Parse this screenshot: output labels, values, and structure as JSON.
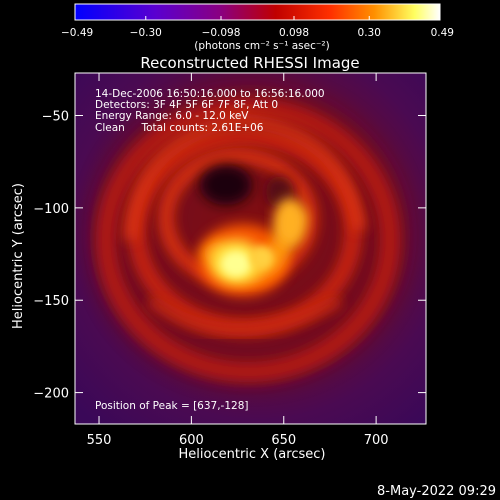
{
  "chart_data": {
    "type": "heatmap",
    "title": "Reconstructed RHESSI Image",
    "xlabel": "Heliocentric X (arcsec)",
    "ylabel": "Heliocentric Y (arcsec)",
    "xlim": [
      537,
      727
    ],
    "ylim": [
      -217,
      -27
    ],
    "xticks": [
      550,
      600,
      650,
      700
    ],
    "yticks": [
      -50,
      -100,
      -150,
      -200
    ],
    "xtick_labels": [
      "550",
      "600",
      "650",
      "700"
    ],
    "ytick_labels": [
      "−50",
      "−100",
      "−150",
      "−200"
    ],
    "colorbar": {
      "min": -0.49,
      "max": 0.49,
      "ticks": [
        -0.49,
        -0.3,
        -0.098,
        0.098,
        0.3,
        0.49
      ],
      "tick_labels": [
        "−0.49",
        "−0.30",
        "−0.098",
        "0.098",
        "0.30",
        "0.49"
      ],
      "units_label": "(photons cm⁻² s⁻¹ asec⁻²)",
      "colors": [
        "#0000ff",
        "#5a00d0",
        "#8a0080",
        "#c00000",
        "#ff4000",
        "#ffa000",
        "#ffff60",
        "#ffffff"
      ]
    },
    "annotations": {
      "time_range": "14-Dec-2006 16:50:16.000 to 16:56:16.000",
      "detectors": "Detectors: 3F 4F 5F 6F 7F 8F, Att 0",
      "energy_range": "Energy Range: 6.0 - 12.0 keV",
      "clean_counts": "Clean     Total counts: 2.61E+06",
      "peak": "Position of Peak = [637,-128]"
    },
    "peak": {
      "x": 637,
      "y": -128
    },
    "source_features": [
      {
        "name": "bright core",
        "x": 630,
        "y": -130
      },
      {
        "name": "secondary core",
        "x": 650,
        "y": -115
      },
      {
        "name": "dark hole",
        "x": 625,
        "y": -78
      }
    ]
  },
  "footer": {
    "date_stamp": "8-May-2022 09:29"
  }
}
